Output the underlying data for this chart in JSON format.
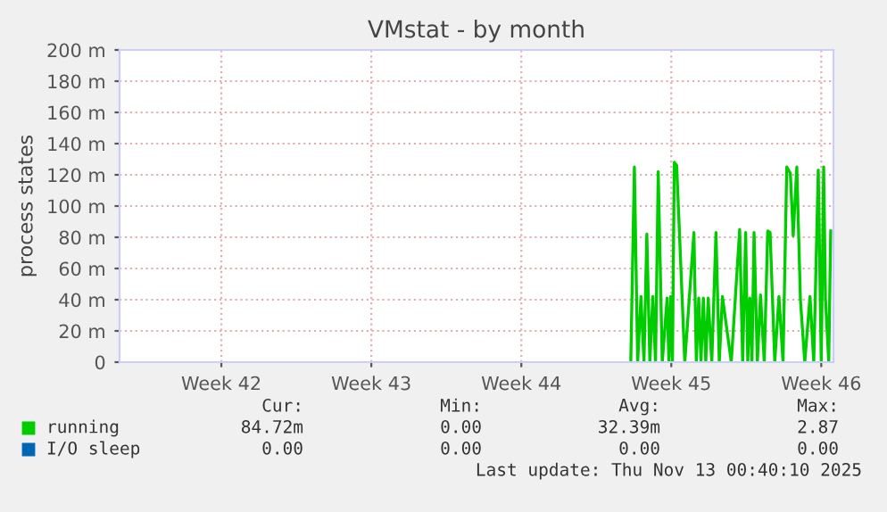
{
  "chart_data": {
    "type": "line",
    "title": "VMstat - by month",
    "ylabel": "process states",
    "xlim": [
      "2025-10-10T17:00",
      "2025-11-13T00:40"
    ],
    "xticks": [
      {
        "value": "2025-10-15T11:00",
        "label": "Week 42"
      },
      {
        "value": "2025-10-22T11:00",
        "label": "Week 43"
      },
      {
        "value": "2025-10-29T11:00",
        "label": "Week 44"
      },
      {
        "value": "2025-11-05T11:00",
        "label": "Week 45"
      },
      {
        "value": "2025-11-12T11:00",
        "label": "Week 46"
      }
    ],
    "ylim": [
      0,
      200
    ],
    "yticks": [
      {
        "value": 0,
        "label": "0"
      },
      {
        "value": 20,
        "label": "20 m"
      },
      {
        "value": 40,
        "label": "40 m"
      },
      {
        "value": 60,
        "label": "60 m"
      },
      {
        "value": 80,
        "label": "80 m"
      },
      {
        "value": 100,
        "label": "100 m"
      },
      {
        "value": 120,
        "label": "120 m"
      },
      {
        "value": 140,
        "label": "140 m"
      },
      {
        "value": 160,
        "label": "160 m"
      },
      {
        "value": 180,
        "label": "180 m"
      },
      {
        "value": 200,
        "label": "200 m"
      }
    ],
    "grid": true,
    "legend": "bottom",
    "marker": "none",
    "line_style": "solid",
    "series": [
      {
        "name": "running",
        "color": "#00cc00",
        "x": [
          "2025-11-03T13:38",
          "2025-11-03T17:40",
          "2025-11-03T21:22",
          "2025-11-04T01:04",
          "2025-11-04T04:25",
          "2025-11-04T07:37",
          "2025-11-04T11:00",
          "2025-11-04T14:20",
          "2025-11-04T17:22",
          "2025-11-04T20:23",
          "2025-11-05T00:55",
          "2025-11-05T06:18",
          "2025-11-05T08:19",
          "2025-11-05T10:20",
          "2025-11-05T12:20",
          "2025-11-05T14:22",
          "2025-11-05T17:03",
          "2025-11-06T02:07",
          "2025-11-06T12:22",
          "2025-11-06T15:04",
          "2025-11-06T17:44",
          "2025-11-06T20:16",
          "2025-11-06T22:57",
          "2025-11-07T01:38",
          "2025-11-07T04:20",
          "2025-11-07T08:22",
          "2025-11-07T13:04",
          "2025-11-07T16:46",
          "2025-11-07T20:17",
          "2025-11-08T06:12",
          "2025-11-08T15:37",
          "2025-11-08T18:58",
          "2025-11-08T22:20",
          "2025-11-09T00:41",
          "2025-11-09T03:02",
          "2025-11-09T05:23",
          "2025-11-09T07:44",
          "2025-11-09T11:26",
          "2025-11-09T14:58",
          "2025-11-09T19:10",
          "2025-11-09T23:01",
          "2025-11-10T01:43",
          "2025-11-10T06:55",
          "2025-11-10T11:37",
          "2025-11-10T16:10",
          "2025-11-10T20:22",
          "2025-11-11T00:23",
          "2025-11-11T03:35",
          "2025-11-11T07:37",
          "2025-11-11T11:39",
          "2025-11-11T16:31",
          "2025-11-11T22:24",
          "2025-11-12T02:36",
          "2025-11-12T07:38",
          "2025-11-12T11:00",
          "2025-11-12T13:41",
          "2025-11-12T15:42",
          "2025-11-12T19:24",
          "2025-11-12T21:35"
        ],
        "values": [
          0,
          125,
          0,
          42,
          0,
          82,
          0,
          42,
          0,
          122,
          0,
          41,
          0,
          42,
          0,
          128,
          126,
          0,
          83,
          0,
          41,
          0,
          41,
          0,
          41,
          0,
          83,
          0,
          42,
          0,
          85,
          0,
          83,
          0,
          41,
          0,
          83,
          0,
          43,
          0,
          84,
          83,
          0,
          42,
          0,
          125,
          121,
          81,
          125,
          40,
          0,
          42,
          0,
          123,
          0,
          125,
          41,
          0,
          84
        ]
      },
      {
        "name": "I/O sleep",
        "color": "#0066b3"
      }
    ],
    "annotations": [
      "Cur:",
      "Min:",
      "Avg:",
      "Max:",
      "84.72m",
      "0.00",
      "32.39m",
      "2.87",
      "0.00",
      "0.00",
      "0.00",
      "0.00",
      "Last update: Thu Nov 13 00:40:10 2025"
    ]
  }
}
